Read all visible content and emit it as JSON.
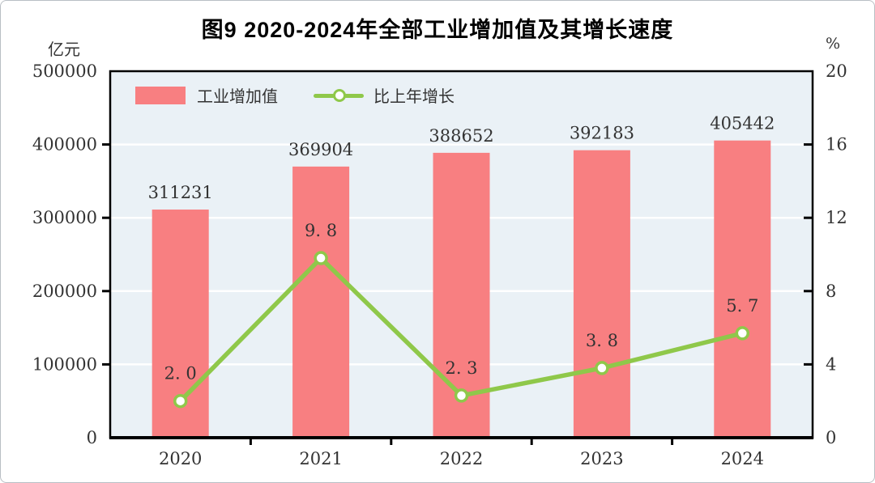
{
  "title": "图9  2020-2024年全部工业增加值及其增长速度",
  "left_axis_unit": "亿元",
  "right_axis_unit": "%",
  "legend": {
    "bar_label": "工业增加值",
    "line_label": "比上年增长"
  },
  "colors": {
    "bar": "#F87F81",
    "line": "#8FC84A",
    "marker_fill": "#FFFFFF",
    "plot_background": "#EAF1F6",
    "gridline": "#FFFFFF",
    "axis": "#000000",
    "text": "#333333"
  },
  "chart_data": {
    "type": "bar+line",
    "title": "图9  2020-2024年全部工业增加值及其增长速度",
    "categories": [
      "2020",
      "2021",
      "2022",
      "2023",
      "2024"
    ],
    "series": [
      {
        "name": "工业增加值",
        "type": "bar",
        "axis": "left",
        "unit": "亿元",
        "values": [
          311231,
          369904,
          388652,
          392183,
          405442
        ],
        "labels": [
          "311231",
          "369904",
          "388652",
          "392183",
          "405442"
        ],
        "color": "#F87F81"
      },
      {
        "name": "比上年增长",
        "type": "line",
        "axis": "right",
        "unit": "%",
        "values": [
          2.0,
          9.8,
          2.3,
          3.8,
          5.7
        ],
        "labels": [
          "2. 0",
          "9. 8",
          "2. 3",
          "3. 8",
          "5. 7"
        ],
        "color": "#8FC84A"
      }
    ],
    "left_axis": {
      "min": 0,
      "max": 500000,
      "step": 100000,
      "tick_labels": [
        "0",
        "100000",
        "200000",
        "300000",
        "400000",
        "500000"
      ]
    },
    "right_axis": {
      "min": 0,
      "max": 20,
      "step": 4,
      "tick_labels": [
        "0",
        "4",
        "8",
        "12",
        "16",
        "20"
      ]
    },
    "grid": true,
    "legend_position": "top-left-inside"
  }
}
